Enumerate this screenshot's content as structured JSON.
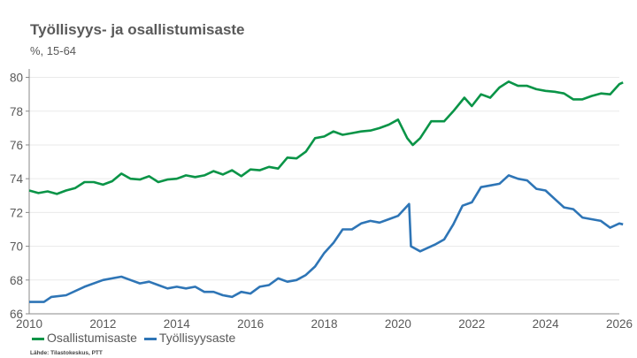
{
  "chart_data": {
    "type": "line",
    "title": "Työllisyys- ja osallistumisaste",
    "subtitle": "%, 15-64",
    "xlabel": "",
    "ylabel": "",
    "xlim": [
      2010,
      2026
    ],
    "ylim": [
      66,
      80.5
    ],
    "xticks": [
      "2010",
      "2012",
      "2014",
      "2016",
      "2018",
      "2020",
      "2022",
      "2024",
      "2026"
    ],
    "yticks": [
      "66",
      "68",
      "70",
      "72",
      "74",
      "76",
      "78",
      "80"
    ],
    "grid": "horizontal",
    "legend_position": "bottom-left",
    "source": "Lähde: Tilastokeskus, PTT",
    "series": [
      {
        "name": "Osallistumisaste",
        "color": "#0A9447",
        "x": [
          2010.0,
          2010.25,
          2010.5,
          2010.75,
          2011.0,
          2011.25,
          2011.5,
          2011.75,
          2012.0,
          2012.25,
          2012.5,
          2012.75,
          2013.0,
          2013.25,
          2013.5,
          2013.75,
          2014.0,
          2014.25,
          2014.5,
          2014.75,
          2015.0,
          2015.25,
          2015.5,
          2015.75,
          2016.0,
          2016.25,
          2016.5,
          2016.75,
          2017.0,
          2017.25,
          2017.5,
          2017.75,
          2018.0,
          2018.25,
          2018.5,
          2018.75,
          2019.0,
          2019.25,
          2019.5,
          2019.75,
          2020.0,
          2020.25,
          2020.4,
          2020.6,
          2020.9,
          2021.25,
          2021.5,
          2021.8,
          2022.0,
          2022.25,
          2022.5,
          2022.75,
          2023.0,
          2023.25,
          2023.5,
          2023.75,
          2024.0,
          2024.25,
          2024.5,
          2024.75,
          2025.0,
          2025.25,
          2025.5,
          2025.75,
          2026.0,
          2026.1
        ],
        "y": [
          73.3,
          73.15,
          73.25,
          73.1,
          73.3,
          73.45,
          73.8,
          73.8,
          73.65,
          73.85,
          74.3,
          74.0,
          73.95,
          74.15,
          73.8,
          73.95,
          74.0,
          74.2,
          74.1,
          74.2,
          74.45,
          74.25,
          74.5,
          74.15,
          74.55,
          74.5,
          74.7,
          74.6,
          75.25,
          75.2,
          75.6,
          76.4,
          76.5,
          76.8,
          76.6,
          76.7,
          76.8,
          76.85,
          77.0,
          77.2,
          77.5,
          76.4,
          76.0,
          76.4,
          77.4,
          77.4,
          78.0,
          78.8,
          78.3,
          79.0,
          78.8,
          79.4,
          79.75,
          79.5,
          79.5,
          79.3,
          79.2,
          79.15,
          79.05,
          78.7,
          78.7,
          78.9,
          79.05,
          79.0,
          79.6,
          79.7
        ]
      },
      {
        "name": "Työllisyysaste",
        "color": "#2E75B6",
        "x": [
          2010.0,
          2010.4,
          2010.6,
          2011.0,
          2011.5,
          2012.0,
          2012.25,
          2012.5,
          2012.75,
          2013.0,
          2013.25,
          2013.5,
          2013.75,
          2014.0,
          2014.25,
          2014.5,
          2014.75,
          2015.0,
          2015.25,
          2015.5,
          2015.75,
          2016.0,
          2016.25,
          2016.5,
          2016.75,
          2017.0,
          2017.25,
          2017.5,
          2017.75,
          2018.0,
          2018.25,
          2018.5,
          2018.75,
          2019.0,
          2019.25,
          2019.5,
          2019.75,
          2020.0,
          2020.3,
          2020.35,
          2020.6,
          2021.0,
          2021.25,
          2021.5,
          2021.75,
          2022.0,
          2022.25,
          2022.5,
          2022.75,
          2023.0,
          2023.25,
          2023.5,
          2023.75,
          2024.0,
          2024.25,
          2024.5,
          2024.75,
          2025.0,
          2025.25,
          2025.5,
          2025.75,
          2026.0,
          2026.1
        ],
        "y": [
          66.7,
          66.7,
          67.0,
          67.1,
          67.6,
          68.0,
          68.1,
          68.2,
          68.0,
          67.8,
          67.9,
          67.7,
          67.5,
          67.6,
          67.5,
          67.6,
          67.3,
          67.3,
          67.1,
          67.0,
          67.3,
          67.2,
          67.6,
          67.7,
          68.1,
          67.9,
          68.0,
          68.3,
          68.8,
          69.6,
          70.2,
          71.0,
          71.0,
          71.35,
          71.5,
          71.4,
          71.6,
          71.8,
          72.5,
          70.0,
          69.7,
          70.1,
          70.4,
          71.3,
          72.4,
          72.6,
          73.5,
          73.6,
          73.7,
          74.2,
          74.0,
          73.9,
          73.4,
          73.3,
          72.8,
          72.3,
          72.2,
          71.7,
          71.6,
          71.5,
          71.1,
          71.35,
          71.3
        ]
      }
    ]
  }
}
